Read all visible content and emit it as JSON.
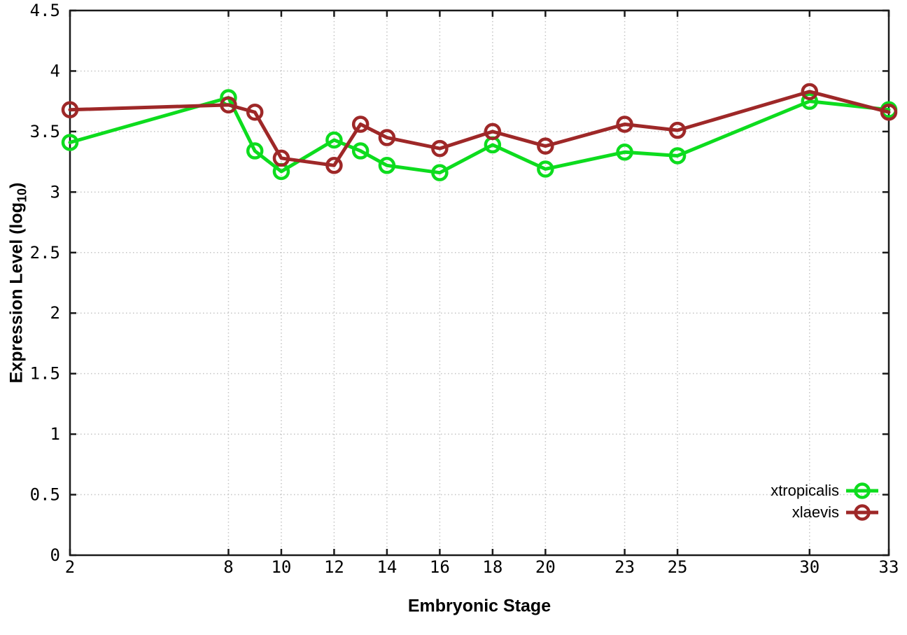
{
  "chart_data": {
    "type": "line",
    "title": "",
    "xlabel": "Embryonic Stage",
    "ylabel": "Expression Level (log10)",
    "ylabel_parts": {
      "main": "Expression Level (log",
      "sub": "10",
      "end": ")"
    },
    "x": [
      2,
      8,
      9,
      10,
      12,
      13,
      14,
      16,
      18,
      20,
      23,
      25,
      30,
      33
    ],
    "series": [
      {
        "name": "xtropicalis",
        "color": "#0ddc1e",
        "values": [
          3.41,
          3.78,
          3.34,
          3.17,
          3.43,
          3.34,
          3.22,
          3.16,
          3.39,
          3.19,
          3.33,
          3.3,
          3.75,
          3.68
        ]
      },
      {
        "name": "xlaevis",
        "color": "#9e2828",
        "values": [
          3.68,
          3.72,
          3.66,
          3.28,
          3.22,
          3.56,
          3.45,
          3.36,
          3.5,
          3.38,
          3.56,
          3.51,
          3.83,
          3.66
        ]
      }
    ],
    "xlim": [
      2,
      33
    ],
    "ylim": [
      0,
      4.5
    ],
    "xticks": {
      "values": [
        2,
        8,
        10,
        12,
        14,
        16,
        18,
        20,
        23,
        25,
        30,
        33
      ],
      "labels": [
        "2",
        "8",
        "10",
        "12",
        "14",
        "16",
        "18",
        "20",
        "23",
        "25",
        "30",
        "33"
      ]
    },
    "yticks": {
      "values": [
        0,
        0.5,
        1,
        1.5,
        2,
        2.5,
        3,
        3.5,
        4,
        4.5
      ],
      "labels": [
        "0",
        "0.5",
        "1",
        "1.5",
        "2",
        "2.5",
        "3",
        "3.5",
        "4",
        "4.5"
      ]
    },
    "grid": true,
    "legend_position": "bottom-right",
    "marker": "open-circle"
  },
  "colors": {
    "background": "#ffffff",
    "border": "#1a1a1a",
    "grid": "#c4c4c4",
    "text": "#000000",
    "xtropicalis": "#0ddc1e",
    "xlaevis": "#9e2828"
  }
}
